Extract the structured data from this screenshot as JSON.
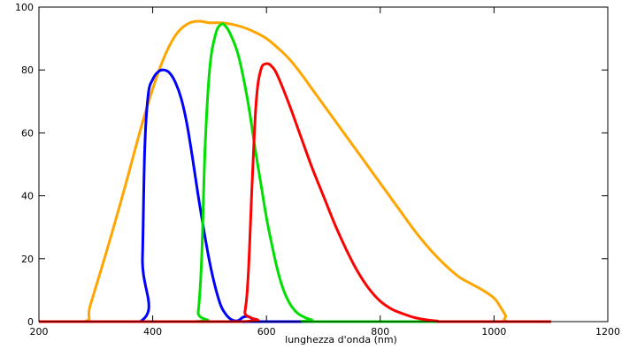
{
  "chart_data": {
    "type": "line",
    "title": "",
    "xlabel": "lunghezza d'onda (nm)",
    "ylabel": "",
    "xlim": [
      200,
      1200
    ],
    "ylim": [
      0,
      100
    ],
    "xticks": [
      200,
      400,
      600,
      800,
      1000,
      1200
    ],
    "yticks": [
      0,
      20,
      40,
      60,
      80,
      100
    ],
    "grid": false,
    "series": [
      {
        "color": "#ffa500",
        "x": [
          200,
          280,
          290,
          320,
          350,
          380,
          400,
          420,
          440,
          460,
          480,
          500,
          520,
          540,
          560,
          580,
          600,
          620,
          640,
          660,
          680,
          700,
          720,
          740,
          760,
          780,
          800,
          820,
          840,
          860,
          880,
          900,
          920,
          940,
          960,
          980,
          1000,
          1010,
          1020,
          1025,
          1100
        ],
        "y": [
          0,
          0,
          5,
          23,
          42,
          62,
          74,
          84,
          91,
          94.5,
          95.5,
          95,
          95,
          94.5,
          93.5,
          92,
          90,
          87,
          83.5,
          79,
          74,
          69,
          64,
          59,
          54,
          49,
          44,
          39,
          34,
          29,
          24.5,
          20.5,
          17,
          14,
          12,
          10,
          7.5,
          5,
          2,
          0,
          0
        ]
      },
      {
        "color": "#0000ff",
        "x": [
          200,
          378,
          382,
          386,
          392,
          400,
          410,
          420,
          430,
          440,
          450,
          460,
          470,
          480,
          490,
          500,
          510,
          520,
          530,
          540,
          550,
          560,
          570,
          580,
          590,
          1100
        ],
        "y": [
          0,
          0,
          20,
          55,
          72,
          77,
          79.5,
          80,
          79,
          76,
          71,
          63,
          52,
          40,
          29,
          19,
          11,
          5,
          2,
          0.5,
          0.3,
          1.5,
          1.5,
          0,
          0,
          0
        ]
      },
      {
        "color": "#00e000",
        "x": [
          200,
          474,
          480,
          486,
          492,
          500,
          510,
          520,
          530,
          540,
          550,
          560,
          570,
          580,
          590,
          600,
          610,
          620,
          630,
          640,
          650,
          660,
          680,
          700,
          1100
        ],
        "y": [
          0,
          0,
          3,
          20,
          55,
          80,
          91,
          94.5,
          93.5,
          90,
          85,
          77,
          67,
          55,
          44,
          33,
          24,
          16,
          10,
          6,
          3.5,
          2,
          0.5,
          0,
          0
        ]
      },
      {
        "color": "#ff0000",
        "x": [
          200,
          555,
          562,
          568,
          575,
          582,
          590,
          600,
          610,
          620,
          640,
          660,
          680,
          700,
          720,
          740,
          760,
          780,
          800,
          820,
          840,
          860,
          880,
          900,
          920,
          1100
        ],
        "y": [
          0,
          0,
          3,
          15,
          45,
          70,
          80,
          82,
          81,
          78,
          69,
          59,
          49,
          40,
          31,
          23,
          16,
          10.5,
          6.5,
          4,
          2.5,
          1.3,
          0.6,
          0.2,
          0,
          0
        ]
      }
    ]
  }
}
